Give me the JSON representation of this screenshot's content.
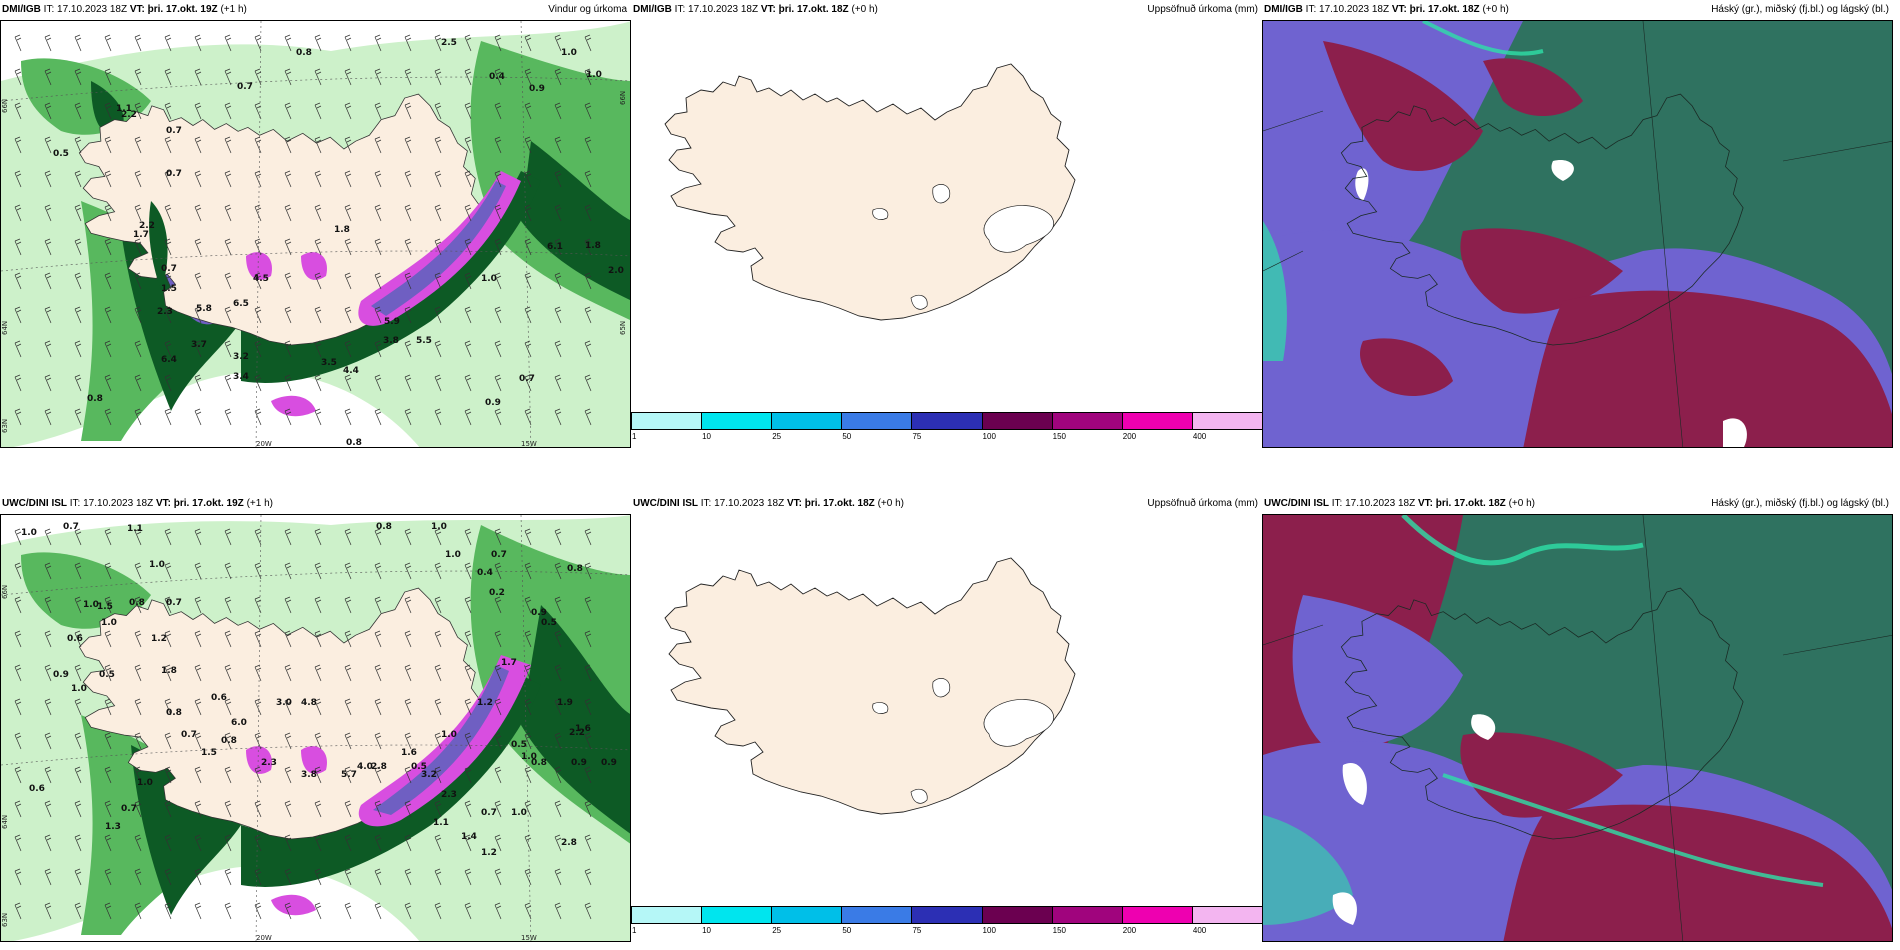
{
  "panels": [
    {
      "model": "DMI/IGB",
      "it_label": "IT:",
      "it_value": "17.10.2023 18Z",
      "vt_label": "VT:",
      "vt_value": "þri. 17.okt. 19Z",
      "lead": "(+1 h)",
      "title": "Vindur og úrkoma",
      "values": [
        "2.5",
        "0.8",
        "1.0",
        "1.0",
        "0.7",
        "0.4",
        "0.9",
        "0.7",
        "0.5",
        "0.7",
        "1.1",
        "2.2",
        "1.8",
        "0.7",
        "1.5",
        "1.7",
        "2.3",
        "5.8",
        "6.5",
        "3.7",
        "6.4",
        "4.5",
        "3.2",
        "3.4",
        "3.5",
        "4.4",
        "3.8",
        "5.9",
        "5.5",
        "0.8",
        "0.9",
        "0.7",
        "0.8",
        "2.0",
        "6.1",
        "1.8",
        "1.0",
        "2.2"
      ],
      "axis_labels": [
        "66N",
        "65N",
        "64N",
        "63N",
        "20W",
        "15W",
        "66N",
        "65N"
      ]
    },
    {
      "model": "DMI/IGB",
      "it_label": "IT:",
      "it_value": "17.10.2023 18Z",
      "vt_label": "VT:",
      "vt_value": "þri. 17.okt. 18Z",
      "lead": "(+0 h)",
      "title": "Uppsöfnuð úrkoma (mm)",
      "colorbar_ticks": [
        "1",
        "10",
        "25",
        "50",
        "75",
        "100",
        "150",
        "200",
        "400"
      ],
      "colorbar_colors": [
        "#b5f7f7",
        "#00e5ee",
        "#00bfe8",
        "#3a7be6",
        "#2c2fb4",
        "#6b0050",
        "#a0047d",
        "#ee00b0",
        "#f3b5f0"
      ]
    },
    {
      "model": "DMI/IGB",
      "it_label": "IT:",
      "it_value": "17.10.2023 18Z",
      "vt_label": "VT:",
      "vt_value": "þri. 17.okt. 18Z",
      "lead": "(+0 h)",
      "title": "Háský (gr.), miðský (fj.bl.) og lágský (bl.)"
    },
    {
      "model": "UWC/DINI ISL",
      "it_label": "IT:",
      "it_value": "17.10.2023 18Z",
      "vt_label": "VT:",
      "vt_value": "þri. 17.okt. 19Z",
      "lead": "(+1 h)",
      "title": "",
      "values": [
        "1.0",
        "0.7",
        "1.1",
        "0.8",
        "1.0",
        "1.0",
        "0.7",
        "0.4",
        "0.2",
        "0.8",
        "1.0",
        "1.0",
        "0.6",
        "1.5",
        "0.8",
        "0.7",
        "1.2",
        "1.0",
        "0.9",
        "0.5",
        "0.9",
        "1.8",
        "0.5",
        "1.0",
        "0.6",
        "6.0",
        "3.0",
        "4.8",
        "1.7",
        "0.7",
        "0.8",
        "0.8",
        "1.5",
        "2.3",
        "1.6",
        "3.8",
        "5.7",
        "4.0",
        "2.8",
        "0.5",
        "1.0",
        "3.2",
        "2.3",
        "0.7",
        "1.0",
        "1.9",
        "2.2",
        "1.6",
        "0.9",
        "0.8",
        "0.5",
        "1.2",
        "0.7",
        "1.0",
        "0.6",
        "1.3",
        "1.1",
        "1.2",
        "1.4",
        "2.8",
        "1.0",
        "0.9"
      ],
      "axis_labels": [
        "66N",
        "65N",
        "64N",
        "63N",
        "20W",
        "15W"
      ]
    },
    {
      "model": "UWC/DINI ISL",
      "it_label": "IT:",
      "it_value": "17.10.2023 18Z",
      "vt_label": "VT:",
      "vt_value": "þri. 17.okt. 18Z",
      "lead": "(+0 h)",
      "title": "Uppsöfnuð úrkoma (mm)",
      "colorbar_ticks": [
        "1",
        "10",
        "25",
        "50",
        "75",
        "100",
        "150",
        "200",
        "400"
      ],
      "colorbar_colors": [
        "#b5f7f7",
        "#00e5ee",
        "#00bfe8",
        "#3a7be6",
        "#2c2fb4",
        "#6b0050",
        "#a0047d",
        "#ee00b0",
        "#f3b5f0"
      ]
    },
    {
      "model": "UWC/DINI ISL",
      "it_label": "IT:",
      "it_value": "17.10.2023 18Z",
      "vt_label": "VT:",
      "vt_value": "þri. 17.okt. 18Z",
      "lead": "(+0 h)",
      "title": "Háský (gr.), miðský (fj.bl.) og lágský (bl.)"
    }
  ],
  "colors": {
    "land": "#fbeee0",
    "precip_light": "#c8efc4",
    "precip_mid": "#58b85e",
    "precip_dark": "#0d5a25",
    "precip_heavy": "#6f5fc2",
    "precip_extreme": "#d84ee0",
    "cloud_high": "#2f7260",
    "cloud_mid": "#6f63d0",
    "cloud_low": "#8c1f4c",
    "cloud_edge": "#2ee0a8"
  }
}
